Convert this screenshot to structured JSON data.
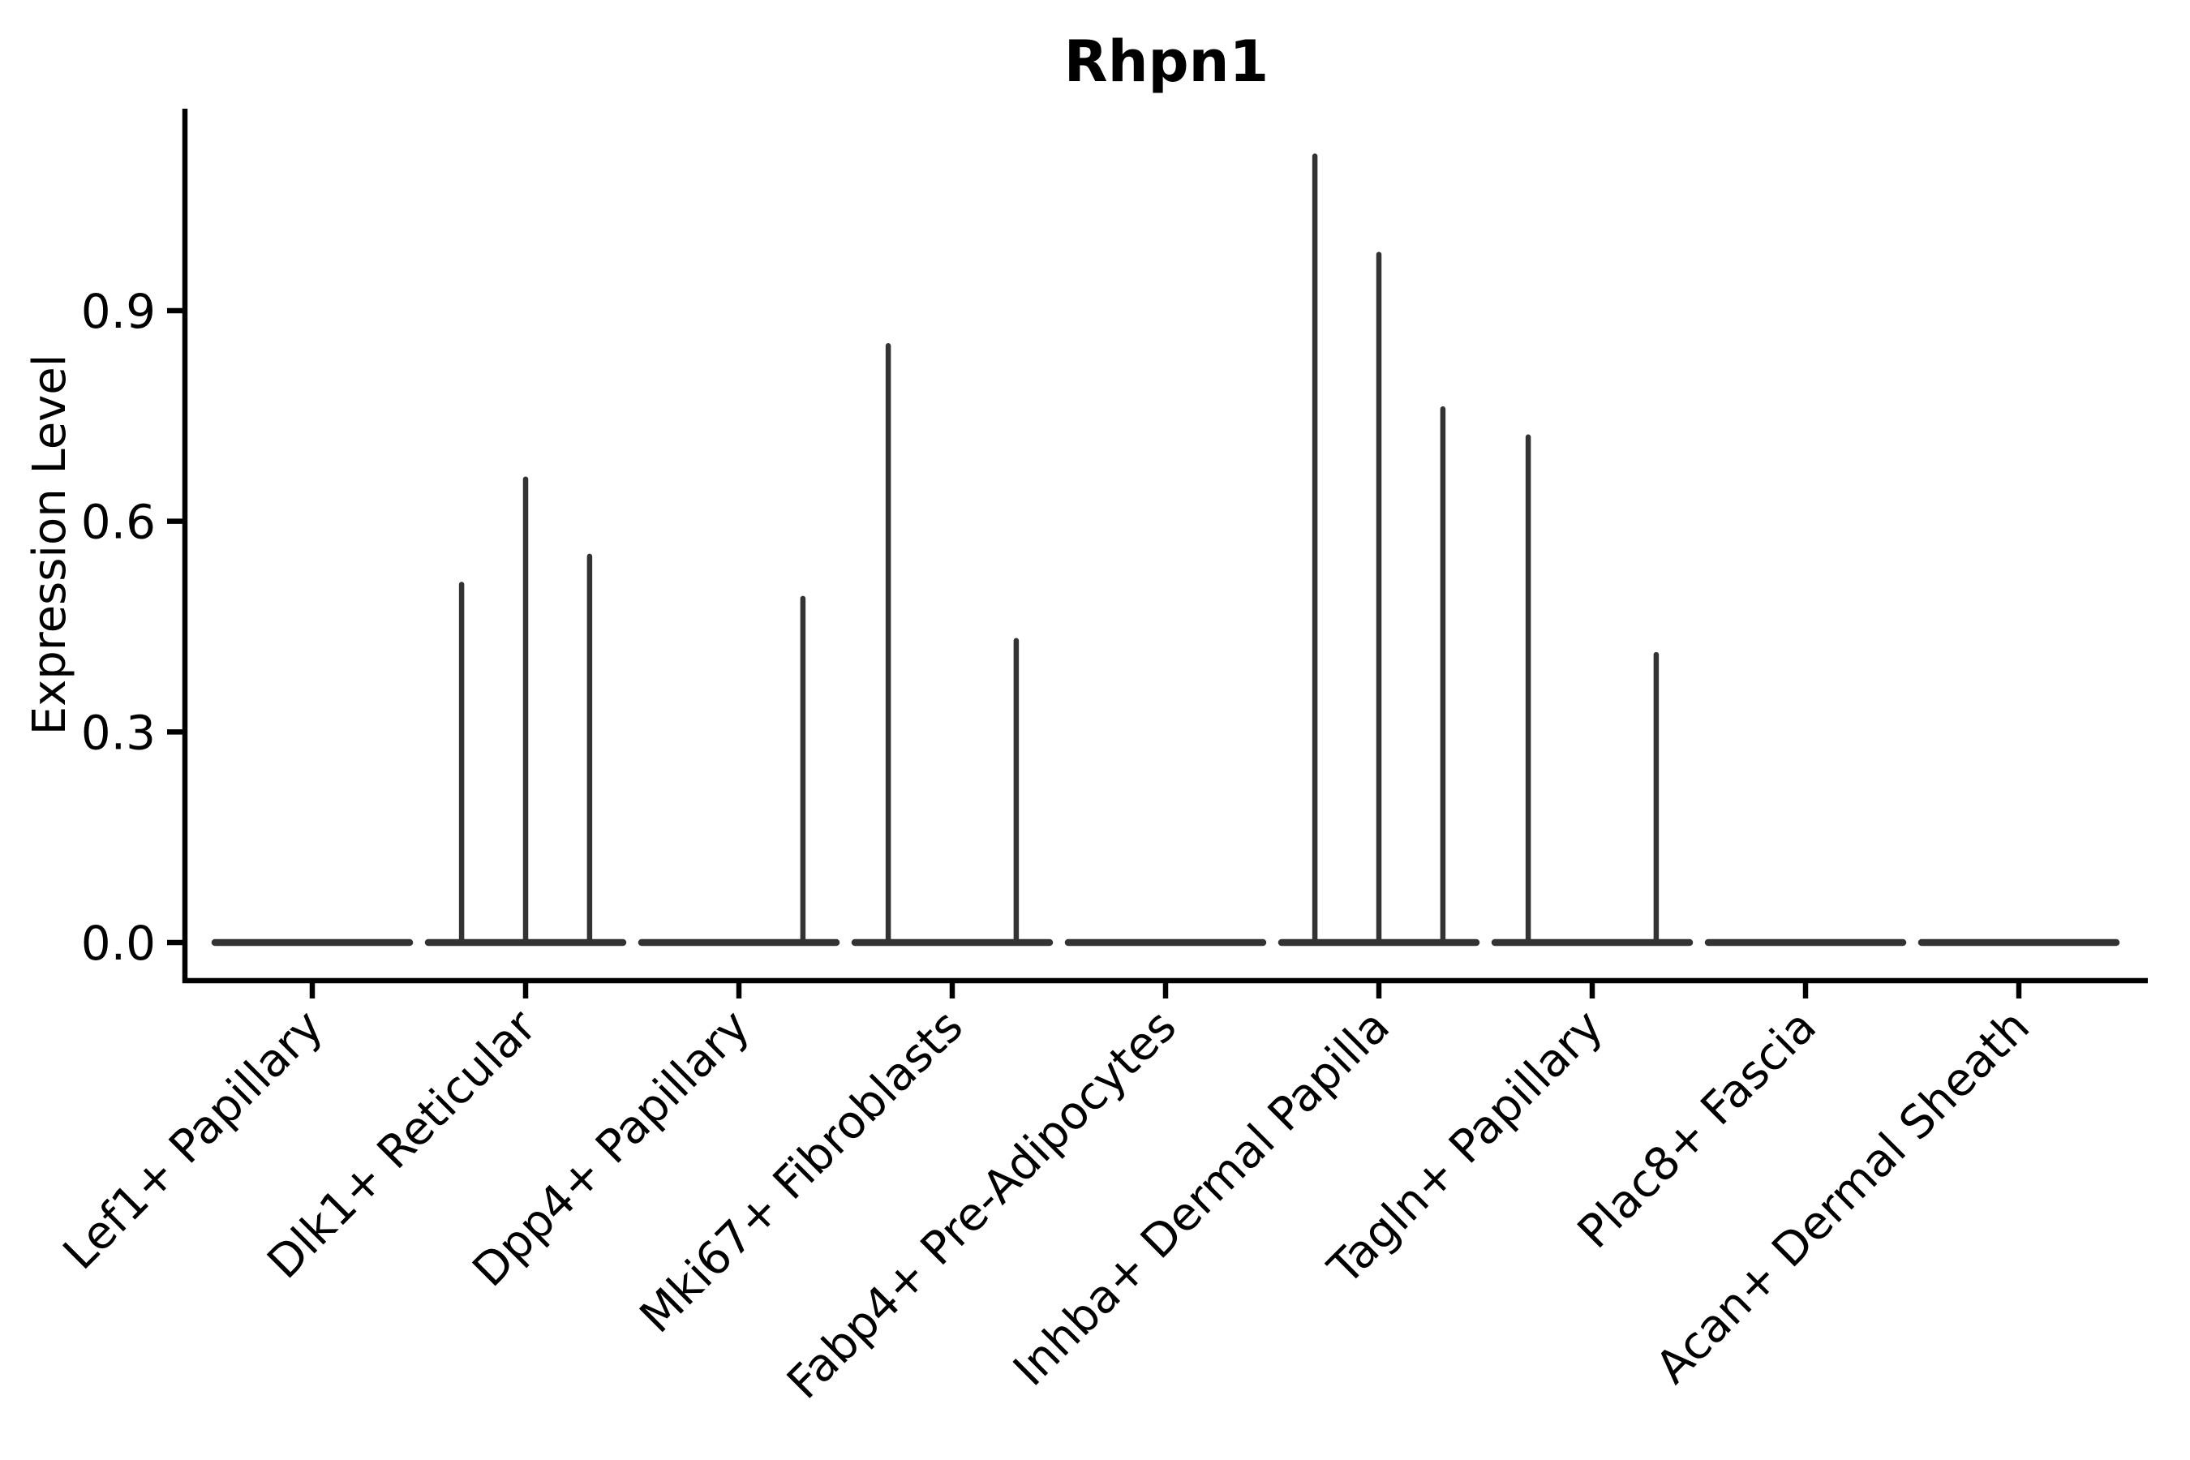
{
  "figure": {
    "title": "Rhpn1",
    "ylabel": "Expression Level"
  },
  "chart_data": {
    "type": "violin",
    "title": "Rhpn1",
    "xlabel": "",
    "ylabel": "Expression Level",
    "grid": false,
    "legend": false,
    "ylim": [
      -0.06,
      1.19
    ],
    "yticks": [
      {
        "value": 0.0,
        "label": "0.0"
      },
      {
        "value": 0.3,
        "label": "0.3"
      },
      {
        "value": 0.6,
        "label": "0.6"
      },
      {
        "value": 0.9,
        "label": "0.9"
      }
    ],
    "categories": [
      "Lef1+ Papillary",
      "Dlk1+ Reticular",
      "Dpp4+ Papillary",
      "Mki67+ Fibroblasts",
      "Fabp4+ Pre-Adipocytes",
      "Inhba+ Dermal Papilla",
      "Tagln+ Papillary",
      "Plac8+ Fascia",
      "Acan+ Dermal Sheath"
    ],
    "violins": [
      {
        "category": "Lef1+ Papillary",
        "baseline_value": 0.0,
        "spikes": []
      },
      {
        "category": "Dlk1+ Reticular",
        "baseline_value": 0.0,
        "spikes": [
          {
            "offset": -0.3,
            "value": 0.51
          },
          {
            "offset": 0.0,
            "value": 0.66
          },
          {
            "offset": 0.3,
            "value": 0.55
          }
        ]
      },
      {
        "category": "Dpp4+ Papillary",
        "baseline_value": 0.0,
        "spikes": [
          {
            "offset": 0.3,
            "value": 0.49
          }
        ]
      },
      {
        "category": "Mki67+ Fibroblasts",
        "baseline_value": 0.0,
        "spikes": [
          {
            "offset": -0.3,
            "value": 0.85
          },
          {
            "offset": 0.3,
            "value": 0.43
          }
        ]
      },
      {
        "category": "Fabp4+ Pre-Adipocytes",
        "baseline_value": 0.0,
        "spikes": []
      },
      {
        "category": "Inhba+ Dermal Papilla",
        "baseline_value": 0.0,
        "spikes": [
          {
            "offset": -0.3,
            "value": 1.12
          },
          {
            "offset": 0.0,
            "value": 0.98
          },
          {
            "offset": 0.3,
            "value": 0.76
          }
        ]
      },
      {
        "category": "Tagln+ Papillary",
        "baseline_value": 0.0,
        "spikes": [
          {
            "offset": -0.3,
            "value": 0.72
          },
          {
            "offset": 0.3,
            "value": 0.41
          }
        ]
      },
      {
        "category": "Plac8+ Fascia",
        "baseline_value": 0.0,
        "spikes": []
      },
      {
        "category": "Acan+ Dermal Sheath",
        "baseline_value": 0.0,
        "spikes": []
      }
    ],
    "colors": {
      "axis": "#000000",
      "text": "#000000",
      "violin": "#333333",
      "background": "#ffffff"
    }
  }
}
